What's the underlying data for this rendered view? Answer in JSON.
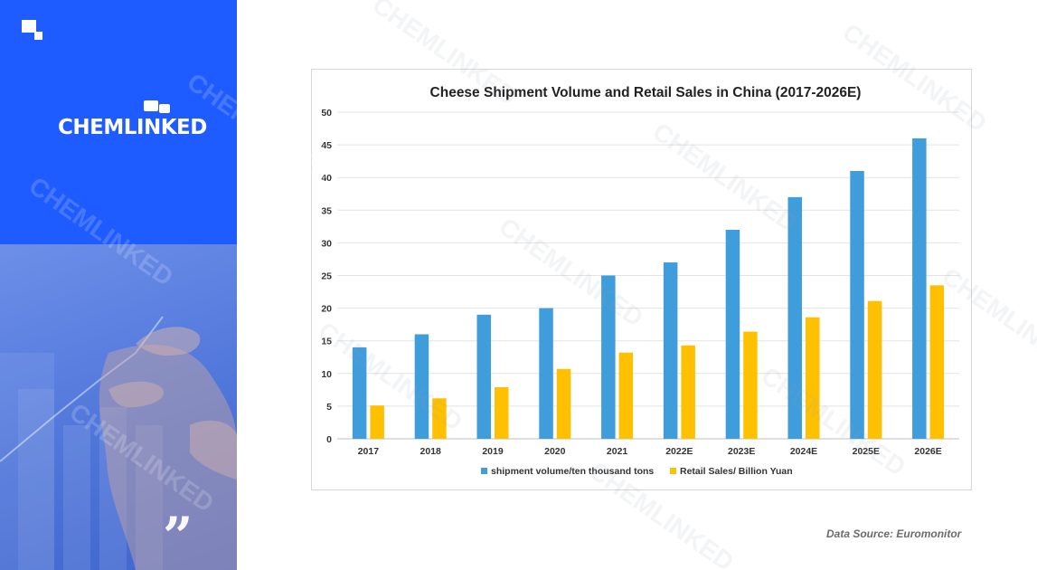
{
  "brand": {
    "logo_text": "CHEMLINKED"
  },
  "colors": {
    "sidebar_blue": "#1f5cff",
    "series_blue": "#3f9ddb",
    "series_orange": "#ffc000"
  },
  "icons": {
    "quote": "double-quote-icon"
  },
  "source_note": "Data Source: Euromonitor",
  "chart_data": {
    "type": "bar",
    "title": "Cheese Shipment Volume and Retail Sales in China (2017-2026E)",
    "categories": [
      "2017",
      "2018",
      "2019",
      "2020",
      "2021",
      "2022E",
      "2023E",
      "2024E",
      "2025E",
      "2026E"
    ],
    "series": [
      {
        "name": "shipment volume/ten thousand tons",
        "color": "#3f9ddb",
        "values": [
          14,
          16,
          19,
          20,
          25,
          27,
          32,
          37,
          41,
          46
        ]
      },
      {
        "name": "Retail Sales/ Billion Yuan",
        "color": "#ffc000",
        "values": [
          5.1,
          6.2,
          7.9,
          10.7,
          13.2,
          14.3,
          16.4,
          18.6,
          21.1,
          23.5
        ]
      }
    ],
    "ylim": [
      0,
      50
    ],
    "yticks": [
      0,
      5,
      10,
      15,
      20,
      25,
      30,
      35,
      40,
      45,
      50
    ],
    "grid": true,
    "legend_position": "bottom",
    "xlabel": "",
    "ylabel": ""
  }
}
